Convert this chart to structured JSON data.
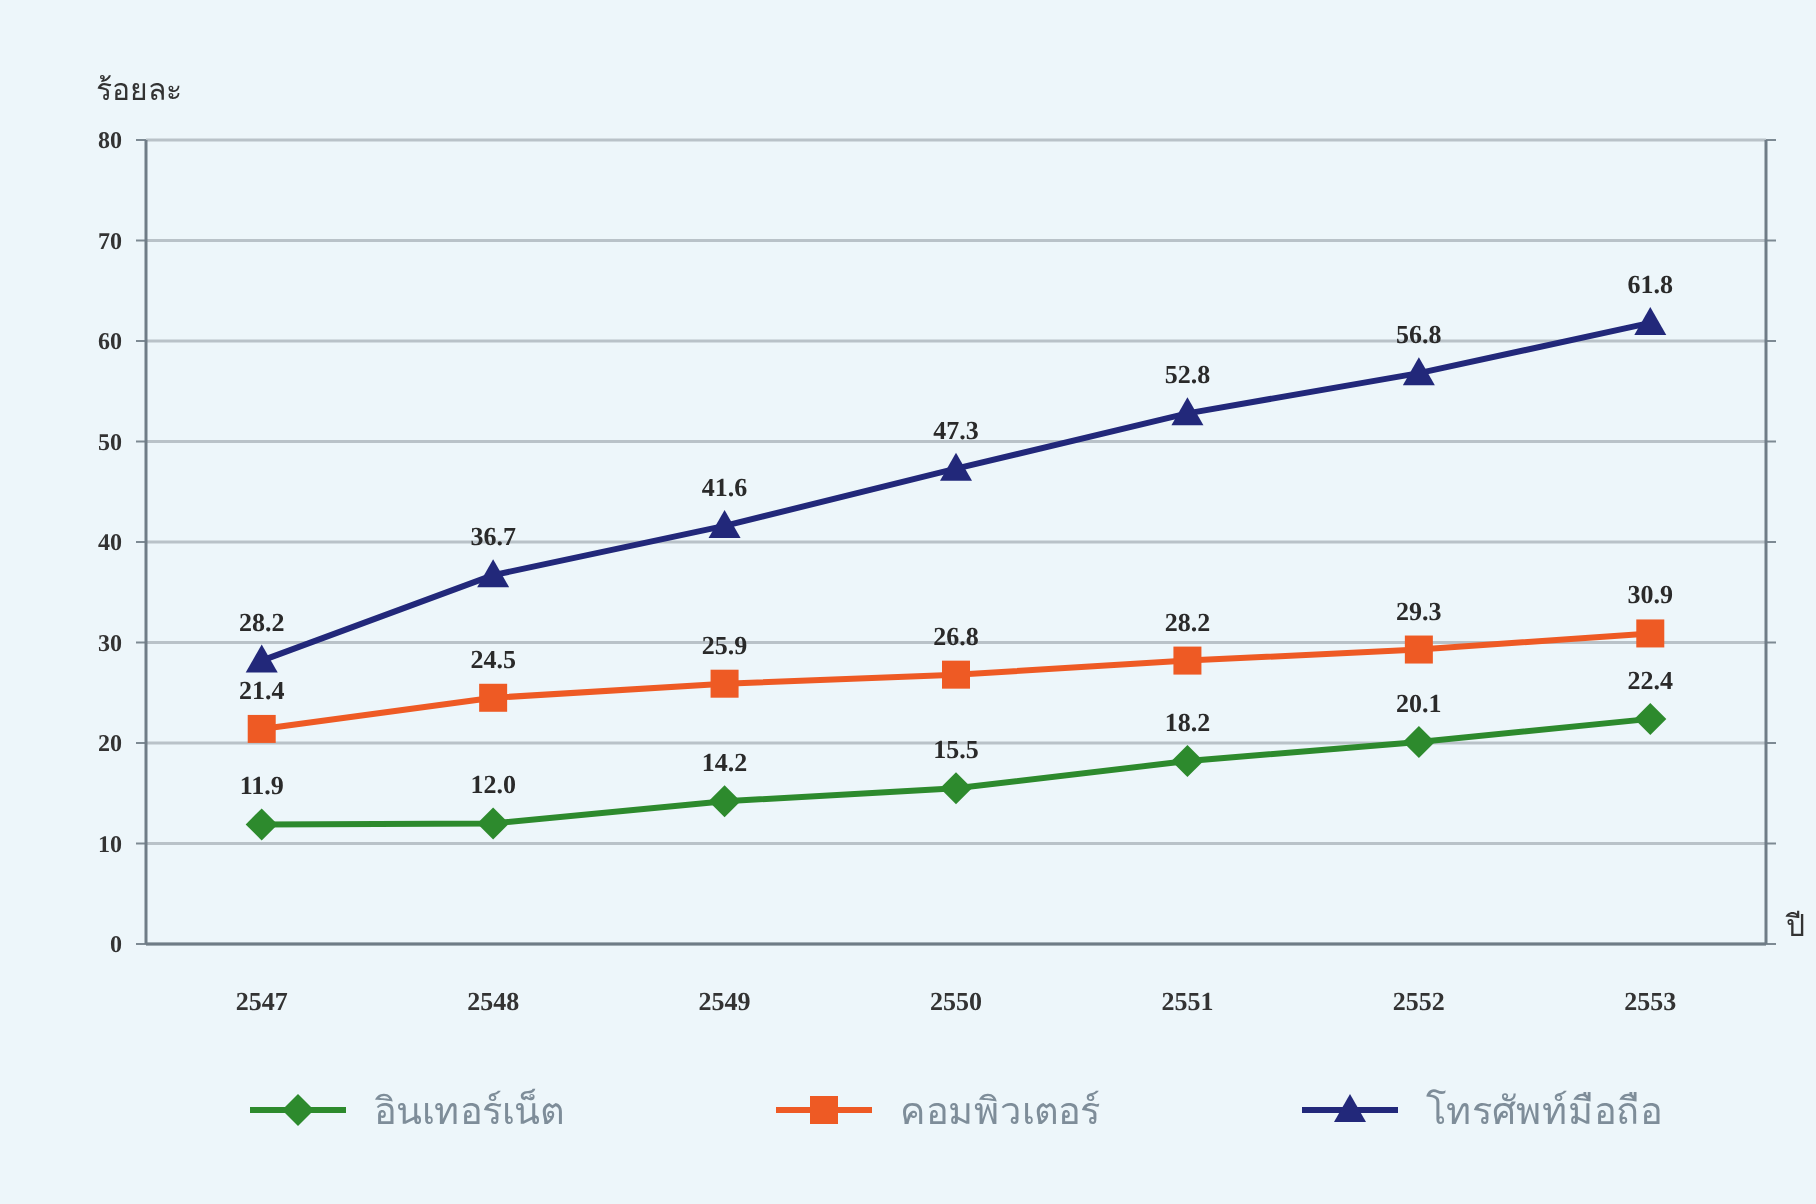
{
  "chart_data": {
    "type": "line",
    "ylabel": "ร้อยละ",
    "xlabel": "ปี",
    "categories": [
      "2547",
      "2548",
      "2549",
      "2550",
      "2551",
      "2552",
      "2553"
    ],
    "series": [
      {
        "name": "อินเทอร์เน็ต",
        "color": "#2d8a2d",
        "marker": "diamond",
        "values": [
          11.9,
          12.0,
          14.2,
          15.5,
          18.2,
          20.1,
          22.4
        ],
        "value_labels": [
          "11.9",
          "12.0",
          "14.2",
          "15.5",
          "18.2",
          "20.1",
          "22.4"
        ]
      },
      {
        "name": "คอมพิวเตอร์",
        "color": "#ee5a24",
        "marker": "square",
        "values": [
          21.4,
          24.5,
          25.9,
          26.8,
          28.2,
          29.3,
          30.9
        ],
        "value_labels": [
          "21.4",
          "24.5",
          "25.9",
          "26.8",
          "28.2",
          "29.3",
          "30.9"
        ]
      },
      {
        "name": "โทรศัพท์มือถือ",
        "color": "#22287a",
        "marker": "triangle",
        "values": [
          28.2,
          36.7,
          41.6,
          47.3,
          52.8,
          56.8,
          61.8
        ],
        "value_labels": [
          "28.2",
          "36.7",
          "41.6",
          "47.3",
          "52.8",
          "56.8",
          "61.8"
        ]
      }
    ],
    "ylim": [
      0,
      80
    ],
    "yticks": [
      0,
      10,
      20,
      30,
      40,
      50,
      60,
      70,
      80
    ],
    "grid": "y",
    "legend": "bottom",
    "line_style": "solid"
  }
}
